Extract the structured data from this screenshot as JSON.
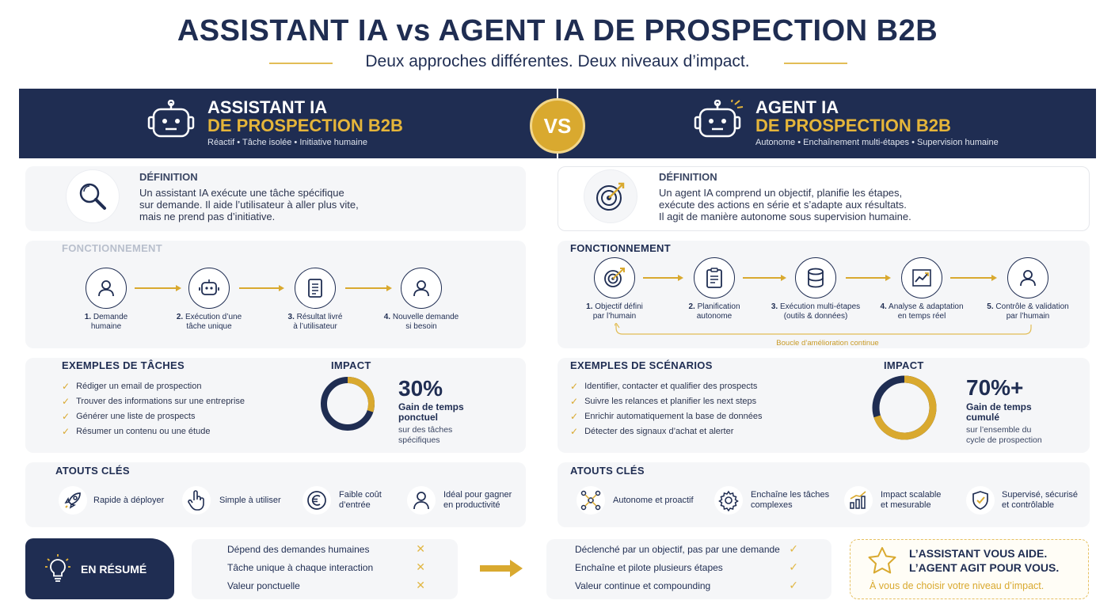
{
  "header": {
    "title": "ASSISTANT IA vs AGENT IA DE PROSPECTION B2B",
    "subtitle": "Deux approches différentes. Deux niveaux d’impact."
  },
  "vs_label": "VS",
  "colors": {
    "navy": "#1f2d52",
    "gold": "#d9a92f",
    "card": "#f5f6f8"
  },
  "assistant": {
    "title_line1": "ASSISTANT IA",
    "title_line2": "DE PROSPECTION B2B",
    "tagline": "Réactif • Tâche isolée • Initiative humaine",
    "icon": "robot-icon",
    "definition": {
      "title": "DÉFINITION",
      "lines": [
        "Un assistant IA exécute une tâche spécifique",
        "sur demande. Il aide l’utilisateur à aller plus vite,",
        "mais ne prend pas d’initiative."
      ],
      "icon": "magnifier-icon"
    },
    "fonctionnement": {
      "title": "FONCTIONNEMENT",
      "steps": [
        {
          "num": "1.",
          "line1": "Demande",
          "line2": "humaine",
          "icon": "user-icon"
        },
        {
          "num": "2.",
          "line1": "Exécution d’une",
          "line2": "tâche unique",
          "icon": "robot-icon"
        },
        {
          "num": "3.",
          "line1": "Résultat livré",
          "line2": "à l’utilisateur",
          "icon": "document-icon"
        },
        {
          "num": "4.",
          "line1": "Nouvelle demande",
          "line2": "si besoin",
          "icon": "user-icon"
        }
      ]
    },
    "exemples": {
      "title": "EXEMPLES DE TÂCHES",
      "items": [
        "Rédiger un email de prospection",
        "Trouver des informations sur une entreprise",
        "Générer une liste de prospects",
        "Résumer un contenu ou une étude"
      ]
    },
    "impact": {
      "title": "IMPACT",
      "value": "30%",
      "fraction": 0.3,
      "label_line1": "Gain de temps",
      "label_line2": "ponctuel",
      "desc_line1": "sur des tâches",
      "desc_line2": "spécifiques"
    },
    "atouts": {
      "title": "ATOUTS CLÉS",
      "items": [
        {
          "line1": "Rapide à déployer",
          "line2": "",
          "icon": "rocket-icon"
        },
        {
          "line1": "Simple à utiliser",
          "line2": "",
          "icon": "hand-pointer-icon"
        },
        {
          "line1": "Faible coût",
          "line2": "d’entrée",
          "icon": "euro-icon"
        },
        {
          "line1": "Idéal pour gagner",
          "line2": "en productivité",
          "icon": "person-icon"
        }
      ]
    }
  },
  "agent": {
    "title_line1": "AGENT IA",
    "title_line2": "DE PROSPECTION B2B",
    "tagline": "Autonome • Enchaînement multi-étapes • Supervision humaine",
    "icon": "robot-spark-icon",
    "definition": {
      "title": "DÉFINITION",
      "lines": [
        "Un agent IA comprend un objectif, planifie les étapes,",
        "exécute des actions en série et s’adapte aux résultats.",
        "Il agit de manière autonome sous supervision humaine."
      ],
      "icon": "target-icon"
    },
    "fonctionnement": {
      "title": "FONCTIONNEMENT",
      "steps": [
        {
          "num": "1.",
          "line1": "Objectif défini",
          "line2": "par l’humain",
          "icon": "target-icon"
        },
        {
          "num": "2.",
          "line1": "Planification",
          "line2": "autonome",
          "icon": "clipboard-icon"
        },
        {
          "num": "3.",
          "line1": "Exécution multi-étapes",
          "line2": "(outils & données)",
          "icon": "database-icon"
        },
        {
          "num": "4.",
          "line1": "Analyse & adaptation",
          "line2": "en temps réel",
          "icon": "chart-icon"
        },
        {
          "num": "5.",
          "line1": "Contrôle & validation",
          "line2": "par l’humain",
          "icon": "user-icon"
        }
      ],
      "loop_label": "Boucle d’amélioration continue"
    },
    "exemples": {
      "title": "EXEMPLES DE SCÉNARIOS",
      "items": [
        "Identifier, contacter et qualifier des prospects",
        "Suivre les relances et planifier les next steps",
        "Enrichir automatiquement la base de données",
        "Détecter des signaux d’achat et alerter"
      ]
    },
    "impact": {
      "title": "IMPACT",
      "value": "70%+",
      "fraction": 0.7,
      "label_line1": "Gain de temps",
      "label_line2": "cumulé",
      "desc_line1": "sur l’ensemble du",
      "desc_line2": "cycle de prospection"
    },
    "atouts": {
      "title": "ATOUTS CLÉS",
      "items": [
        {
          "line1": "Autonome et proactif",
          "line2": "",
          "icon": "network-icon"
        },
        {
          "line1": "Enchaîne les tâches",
          "line2": "complexes",
          "icon": "gear-icon"
        },
        {
          "line1": "Impact scalable",
          "line2": "et mesurable",
          "icon": "bar-chart-icon"
        },
        {
          "line1": "Supervisé, sécurisé",
          "line2": "et contrôlable",
          "icon": "shield-icon"
        }
      ]
    }
  },
  "summary": {
    "label": "EN RÉSUMÉ",
    "icon": "lightbulb-icon",
    "assistant_rows": [
      "Dépend des demandes humaines",
      "Tâche unique à chaque interaction",
      "Valeur ponctuelle"
    ],
    "agent_rows": [
      "Déclenché par un objectif, pas par une demande",
      "Enchaîne et pilote plusieurs étapes",
      "Valeur continue et compounding"
    ],
    "final_line1": "L’ASSISTANT VOUS AIDE.",
    "final_line2": "L’AGENT AGIT POUR VOUS.",
    "final_line3": "À vous de choisir votre niveau d’impact.",
    "x_mark": "✕",
    "v_mark": "✓",
    "check_mark": "✓"
  }
}
